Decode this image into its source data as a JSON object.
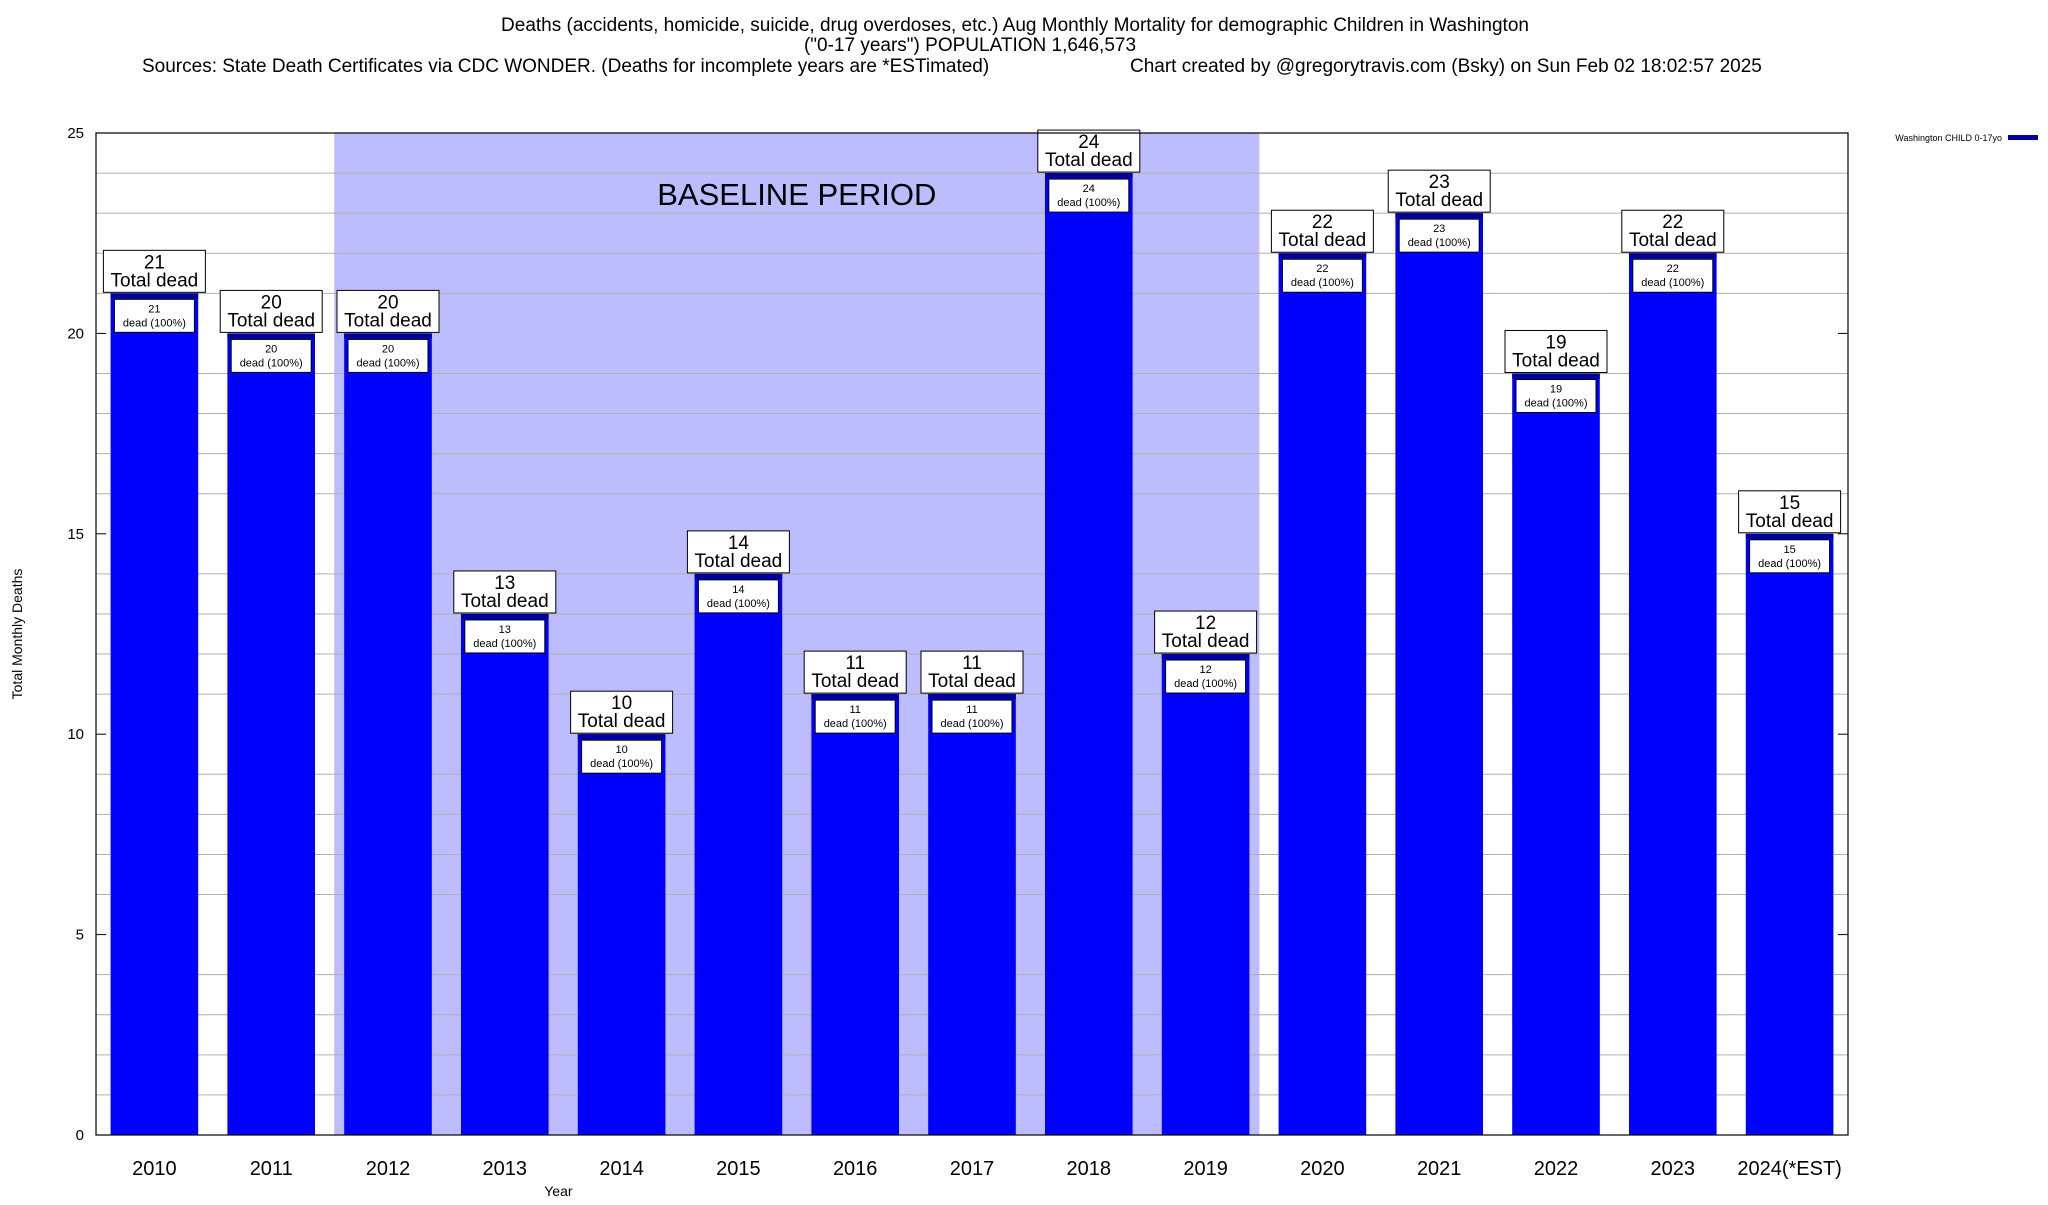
{
  "chart_data": {
    "type": "bar",
    "title_lines": [
      "Deaths (accidents, homicide, suicide, drug overdoses, etc.) Aug Monthly Mortality for demographic Children in Washington",
      "(\"0-17 years\") POPULATION 1,646,573",
      "Sources: State Death Certificates via CDC WONDER. (Deaths for incomplete years are *ESTimated)",
      "Chart created by @gregorytravis.com (Bsky) on Sun Feb 02 18:02:57 2025"
    ],
    "xlabel": "Year",
    "ylabel": "Total Monthly Deaths",
    "ylim": [
      0,
      25
    ],
    "y_ticks": [
      0,
      5,
      10,
      15,
      20,
      25
    ],
    "y_minor_step": 1,
    "categories": [
      "2010",
      "2011",
      "2012",
      "2013",
      "2014",
      "2015",
      "2016",
      "2017",
      "2018",
      "2019",
      "2020",
      "2021",
      "2022",
      "2023",
      "2024(*EST)"
    ],
    "series": [
      {
        "name": "Washington CHILD 0-17yo",
        "color": "#0000ff",
        "values": [
          21,
          20,
          20,
          13,
          10,
          14,
          11,
          11,
          24,
          12,
          22,
          23,
          19,
          22,
          15
        ]
      }
    ],
    "top_label_suffix": "Total dead",
    "inner_label_suffix": "dead (100%)",
    "shaded_region": {
      "label": "BASELINE PERIOD",
      "from_category": "2012",
      "to_category": "2019",
      "color": "#bcbcff"
    },
    "legend_position": "top-right",
    "grid": "horizontal minor",
    "bar_top_color": "#00009b"
  }
}
